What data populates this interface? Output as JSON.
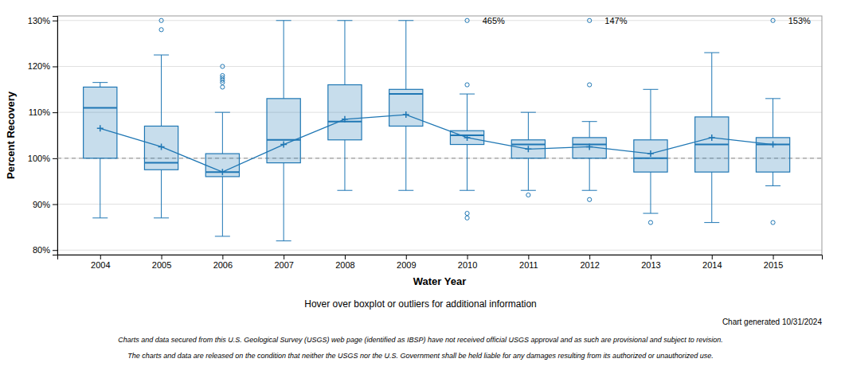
{
  "chart_data": {
    "type": "box",
    "x": [
      2004,
      2005,
      2006,
      2007,
      2008,
      2009,
      2010,
      2011,
      2012,
      2013,
      2014,
      2015
    ],
    "boxes": [
      {
        "q1": 100,
        "median": 111,
        "q3": 115.5,
        "mean": 106.5,
        "whislo": 87,
        "whishi": 116.5,
        "fliers": []
      },
      {
        "q1": 97.5,
        "median": 99,
        "q3": 107,
        "mean": 102.5,
        "whislo": 87,
        "whishi": 122.5,
        "fliers": [
          128,
          130
        ]
      },
      {
        "q1": 96,
        "median": 97,
        "q3": 101,
        "mean": 97,
        "whislo": 83,
        "whishi": 110,
        "fliers": [
          115.5,
          116.5,
          117,
          117.5,
          118,
          120
        ]
      },
      {
        "q1": 99,
        "median": 104,
        "q3": 113,
        "mean": 103,
        "whislo": 82,
        "whishi": 130,
        "fliers": []
      },
      {
        "q1": 104,
        "median": 108,
        "q3": 116,
        "mean": 108.5,
        "whislo": 93,
        "whishi": 130,
        "fliers": []
      },
      {
        "q1": 107,
        "median": 114,
        "q3": 115,
        "mean": 109.5,
        "whislo": 93,
        "whishi": 130,
        "fliers": []
      },
      {
        "q1": 103,
        "median": 105,
        "q3": 106,
        "mean": 104.5,
        "whislo": 93,
        "whishi": 114,
        "fliers": [
          116,
          88,
          87
        ]
      },
      {
        "q1": 100,
        "median": 103,
        "q3": 104,
        "mean": 102,
        "whislo": 93,
        "whishi": 110,
        "fliers": [
          92
        ]
      },
      {
        "q1": 100,
        "median": 103,
        "q3": 104.5,
        "mean": 102.5,
        "whislo": 93,
        "whishi": 108,
        "fliers": [
          116,
          91
        ]
      },
      {
        "q1": 97,
        "median": 100,
        "q3": 104,
        "mean": 101,
        "whislo": 88,
        "whishi": 115,
        "fliers": [
          86
        ]
      },
      {
        "q1": 97,
        "median": 103,
        "q3": 109,
        "mean": 104.5,
        "whislo": 86,
        "whishi": 123,
        "fliers": []
      },
      {
        "q1": 97,
        "median": 103,
        "q3": 104.5,
        "mean": 103,
        "whislo": 94,
        "whishi": 113,
        "fliers": [
          86
        ]
      }
    ],
    "mean_line": [
      106.5,
      102.5,
      97,
      103,
      108.5,
      109.5,
      104.5,
      102,
      102.5,
      101,
      104.5,
      103
    ],
    "ref_line": 100,
    "annotations": [
      {
        "x": 2010,
        "text": "465%"
      },
      {
        "x": 2012,
        "text": "147%"
      },
      {
        "x": 2015,
        "text": "153%"
      }
    ],
    "xlim": [
      2003.3,
      2015.8
    ],
    "xticks": [
      2004,
      2005,
      2006,
      2007,
      2008,
      2009,
      2010,
      2011,
      2012,
      2013,
      2014,
      2015
    ],
    "ylim": [
      79,
      131
    ],
    "yticks": [
      {
        "value": 80,
        "label": "80%"
      },
      {
        "value": 90,
        "label": "90%"
      },
      {
        "value": 100,
        "label": "100%"
      },
      {
        "value": 110,
        "label": "110%"
      },
      {
        "value": 120,
        "label": "120%"
      },
      {
        "value": 130,
        "label": "130%"
      }
    ],
    "xlabel": "Water Year",
    "ylabel": "Percent Recovery",
    "grid": true,
    "notes": [
      "Hover over boxplot or outliers for additional information",
      "Chart generated 10/31/2024",
      "Charts and data secured from this U.S. Geological Survey (USGS) web page (identified as IBSP) have not received official USGS approval and as such are provisional and subject to revision.",
      "The charts and data are released on the condition that neither the USGS nor the U.S. Government shall be held liable for any damages resulting from its authorized or unauthorized use."
    ]
  }
}
